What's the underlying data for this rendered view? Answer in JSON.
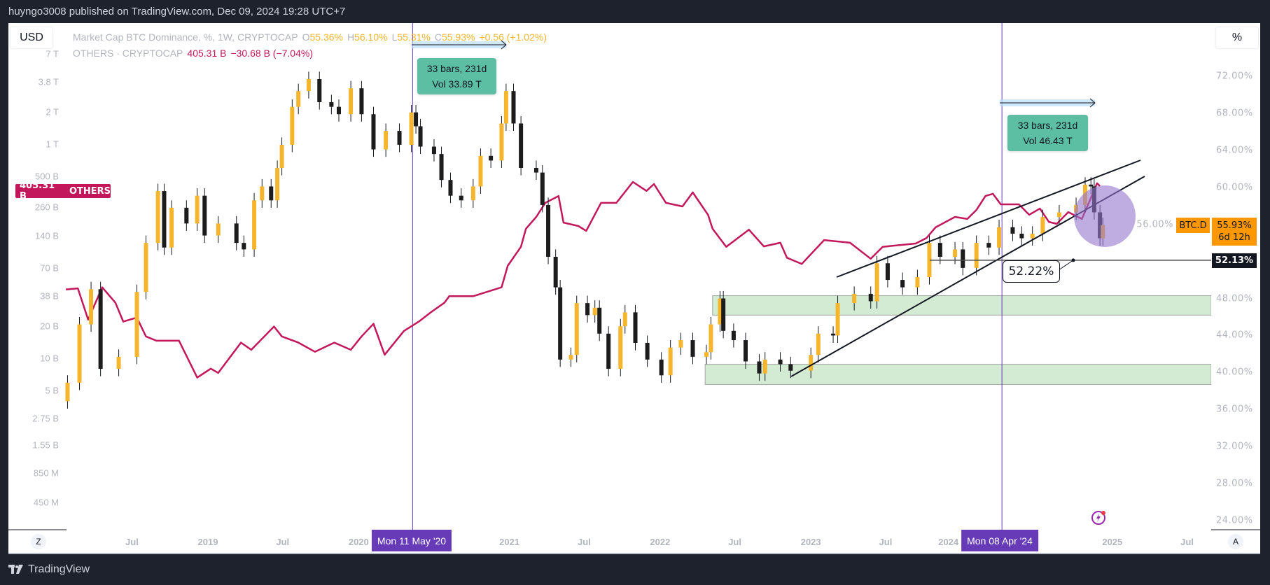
{
  "header": {
    "published": "huyngo3008 published on TradingView.com, Dec 09, 2024 19:28 UTC+7"
  },
  "toolbar": {
    "currency": "USD",
    "scale_mode": "%",
    "auto_button": "A",
    "zoom_button": "Z"
  },
  "legend": {
    "main": {
      "title": "Market Cap BTC Dominance, %, 1W, CRYPTOCAP",
      "o_label": "O",
      "o": "55.36%",
      "h_label": "H",
      "h": "56.10%",
      "l_label": "L",
      "l": "55.31%",
      "c_label": "C",
      "c": "55.93%",
      "change": "+0.56 (+1.02%)"
    },
    "others": {
      "title": "OTHERS · CRYPTOCAP",
      "value": "405.31 B",
      "change": "−30.68 B (−7.04%)"
    }
  },
  "colors": {
    "up_candle": "#f5b62e",
    "down_candle": "#1c1c1c",
    "others_line": "#c2185b",
    "date_marker": "#673ab7",
    "btcd_tag": "#ff9800",
    "zone": "#d4ebd3",
    "highlight_circle": "#9575cd",
    "measure_box": "#5cbfa3"
  },
  "price_labels": {
    "others_tag_value": "405.31 B",
    "others_tag_name": "OTHERS",
    "btcd_tag_name": "BTC.D",
    "btcd_value": "55.93%",
    "btcd_countdown": "6d 12h",
    "hline_value": "52.13%",
    "callout": "52.22%"
  },
  "measures": [
    {
      "bars": "33 bars, 231d",
      "vol": "Vol 33.89 T"
    },
    {
      "bars": "33 bars, 231d",
      "vol": "Vol 46.43 T"
    }
  ],
  "date_markers": [
    "Mon 11 May '20",
    "Mon 08 Apr '24"
  ],
  "footer": {
    "brand": "TradingView"
  },
  "chart_data": {
    "type": "candlestick+line",
    "left_axis": {
      "scale": "log",
      "ticks": [
        "7 T",
        "3.8 T",
        "2 T",
        "1 T",
        "500 B",
        "260 B",
        "140 B",
        "70 B",
        "38 B",
        "20 B",
        "10 B",
        "5 B",
        "2.75 B",
        "1.55 B",
        "850 M",
        "450 M"
      ]
    },
    "right_axis": {
      "scale": "linear",
      "ticks": [
        "72.00%",
        "68.00%",
        "64.00%",
        "60.00%",
        "56.00%",
        "48.00%",
        "44.00%",
        "40.00%",
        "36.00%",
        "32.00%",
        "28.00%",
        "24.00%"
      ]
    },
    "x_ticks": [
      {
        "label": "Jul",
        "date": "2018-07-01"
      },
      {
        "label": "2019",
        "date": "2019-01-01"
      },
      {
        "label": "Jul",
        "date": "2019-07-01"
      },
      {
        "label": "2020",
        "date": "2020-01-01"
      },
      {
        "label": "2021",
        "date": "2021-01-01"
      },
      {
        "label": "Jul",
        "date": "2021-07-01"
      },
      {
        "label": "2022",
        "date": "2022-01-01"
      },
      {
        "label": "Jul",
        "date": "2022-07-01"
      },
      {
        "label": "2023",
        "date": "2023-01-01"
      },
      {
        "label": "Jul",
        "date": "2023-07-01"
      },
      {
        "label": "2024",
        "date": "2024-01-01"
      },
      {
        "label": "2025",
        "date": "2025-01-01"
      },
      {
        "label": "Jul",
        "date": "2025-07-01"
      }
    ],
    "series": [
      {
        "name": "Market Cap BTC Dominance",
        "unit": "%",
        "axis": "right",
        "style": "candles",
        "closes": [
          [
            "2018-01-26",
            38.9
          ],
          [
            "2018-02-24",
            45.2
          ],
          [
            "2018-03-24",
            49.0
          ],
          [
            "2018-04-16",
            40.4
          ],
          [
            "2018-05-30",
            41.7
          ],
          [
            "2018-07-13",
            48.7
          ],
          [
            "2018-08-04",
            54.0
          ],
          [
            "2018-09-02",
            59.6
          ],
          [
            "2018-09-17",
            53.5
          ],
          [
            "2018-10-05",
            57.8
          ],
          [
            "2018-11-10",
            56.1
          ],
          [
            "2018-12-06",
            59.1
          ],
          [
            "2018-12-24",
            54.8
          ],
          [
            "2019-01-26",
            56.1
          ],
          [
            "2019-03-11",
            54.0
          ],
          [
            "2019-03-29",
            53.3
          ],
          [
            "2019-04-23",
            58.6
          ],
          [
            "2019-05-12",
            60.1
          ],
          [
            "2019-06-03",
            58.6
          ],
          [
            "2019-06-18",
            62.1
          ],
          [
            "2019-06-29",
            64.6
          ],
          [
            "2019-07-24",
            68.7
          ],
          [
            "2019-08-08",
            70.4
          ],
          [
            "2019-09-02",
            71.7
          ],
          [
            "2019-09-28",
            69.2
          ],
          [
            "2019-10-27",
            68.7
          ],
          [
            "2019-11-14",
            67.9
          ],
          [
            "2019-12-13",
            70.7
          ],
          [
            "2020-01-08",
            67.9
          ],
          [
            "2020-02-06",
            64.1
          ],
          [
            "2020-03-07",
            66.1
          ],
          [
            "2020-04-09",
            64.6
          ],
          [
            "2020-05-08",
            68.1
          ],
          [
            "2020-05-19",
            66.6
          ],
          [
            "2020-05-30",
            64.4
          ],
          [
            "2020-07-02",
            63.6
          ],
          [
            "2020-07-20",
            60.8
          ],
          [
            "2020-08-11",
            59.1
          ],
          [
            "2020-09-06",
            58.6
          ],
          [
            "2020-10-05",
            60.1
          ],
          [
            "2020-10-23",
            63.4
          ],
          [
            "2020-11-17",
            62.9
          ],
          [
            "2020-12-13",
            66.9
          ],
          [
            "2020-12-24",
            70.4
          ],
          [
            "2021-01-11",
            66.9
          ],
          [
            "2021-01-29",
            62.1
          ],
          [
            "2021-03-07",
            61.6
          ],
          [
            "2021-03-22",
            58.1
          ],
          [
            "2021-04-05",
            52.5
          ],
          [
            "2021-04-23",
            49.2
          ],
          [
            "2021-05-04",
            41.4
          ],
          [
            "2021-05-30",
            41.9
          ],
          [
            "2021-06-13",
            47.5
          ],
          [
            "2021-07-09",
            46.2
          ],
          [
            "2021-07-27",
            47.0
          ],
          [
            "2021-08-07",
            44.2
          ],
          [
            "2021-08-29",
            40.4
          ],
          [
            "2021-09-27",
            45.0
          ],
          [
            "2021-10-08",
            46.5
          ],
          [
            "2021-11-02",
            43.2
          ],
          [
            "2021-12-01",
            41.4
          ],
          [
            "2022-01-04",
            39.7
          ],
          [
            "2022-01-26",
            42.7
          ],
          [
            "2022-02-20",
            43.5
          ],
          [
            "2022-03-21",
            41.7
          ],
          [
            "2022-04-23",
            42.2
          ],
          [
            "2022-05-04",
            45.2
          ],
          [
            "2022-05-26",
            48.0
          ],
          [
            "2022-06-03",
            44.5
          ],
          [
            "2022-06-28",
            43.5
          ],
          [
            "2022-07-27",
            41.2
          ],
          [
            "2022-08-29",
            39.9
          ],
          [
            "2022-09-12",
            41.4
          ],
          [
            "2022-10-19",
            40.9
          ],
          [
            "2022-11-13",
            40.2
          ],
          [
            "2023-01-01",
            41.9
          ],
          [
            "2023-01-19",
            44.2
          ],
          [
            "2023-02-24",
            44.0
          ],
          [
            "2023-03-07",
            47.5
          ],
          [
            "2023-04-16",
            48.5
          ],
          [
            "2023-05-26",
            47.7
          ],
          [
            "2023-06-10",
            51.8
          ],
          [
            "2023-07-06",
            50.0
          ],
          [
            "2023-08-11",
            49.2
          ],
          [
            "2023-09-16",
            50.3
          ],
          [
            "2023-10-15",
            54.0
          ],
          [
            "2023-11-10",
            52.5
          ],
          [
            "2023-12-16",
            53.3
          ],
          [
            "2024-01-04",
            51.3
          ],
          [
            "2024-02-06",
            54.0
          ],
          [
            "2024-03-07",
            53.5
          ],
          [
            "2024-04-01",
            55.7
          ],
          [
            "2024-05-04",
            55.0
          ],
          [
            "2024-05-26",
            54.5
          ],
          [
            "2024-06-21",
            55.0
          ],
          [
            "2024-07-16",
            56.8
          ],
          [
            "2024-08-25",
            57.3
          ],
          [
            "2024-10-05",
            58.1
          ],
          [
            "2024-10-27",
            60.3
          ],
          [
            "2024-11-10",
            60.1
          ],
          [
            "2024-11-18",
            57.3
          ],
          [
            "2024-12-02",
            54.5
          ],
          [
            "2024-12-09",
            55.93
          ]
        ]
      },
      {
        "name": "OTHERS",
        "unit": "B USD",
        "axis": "left",
        "style": "line",
        "points": [
          [
            "2018-01-22",
            44
          ],
          [
            "2018-02-20",
            45
          ],
          [
            "2018-03-17",
            23
          ],
          [
            "2018-04-20",
            46
          ],
          [
            "2018-05-22",
            33
          ],
          [
            "2018-06-10",
            22
          ],
          [
            "2018-07-13",
            24
          ],
          [
            "2018-08-04",
            16
          ],
          [
            "2018-08-29",
            14.6
          ],
          [
            "2018-10-23",
            14.6
          ],
          [
            "2018-12-06",
            6.6
          ],
          [
            "2019-01-08",
            8
          ],
          [
            "2019-01-26",
            7.3
          ],
          [
            "2019-03-22",
            14
          ],
          [
            "2019-04-16",
            12
          ],
          [
            "2019-06-10",
            19.8
          ],
          [
            "2019-06-29",
            16
          ],
          [
            "2019-08-08",
            14
          ],
          [
            "2019-09-17",
            11.5
          ],
          [
            "2019-11-03",
            14
          ],
          [
            "2019-12-13",
            12
          ],
          [
            "2020-01-08",
            16
          ],
          [
            "2020-02-06",
            21
          ],
          [
            "2020-03-04",
            10.8
          ],
          [
            "2020-04-20",
            18
          ],
          [
            "2020-05-26",
            22
          ],
          [
            "2020-06-25",
            27
          ],
          [
            "2020-07-27",
            33
          ],
          [
            "2020-08-08",
            38
          ],
          [
            "2020-10-05",
            38
          ],
          [
            "2020-12-13",
            46
          ],
          [
            "2020-12-28",
            73
          ],
          [
            "2021-01-29",
            110
          ],
          [
            "2021-02-10",
            162
          ],
          [
            "2021-03-07",
            209
          ],
          [
            "2021-03-29",
            283
          ],
          [
            "2021-04-30",
            328
          ],
          [
            "2021-05-12",
            185
          ],
          [
            "2021-06-17",
            172
          ],
          [
            "2021-07-06",
            155
          ],
          [
            "2021-08-11",
            283
          ],
          [
            "2021-09-17",
            283
          ],
          [
            "2021-10-27",
            444
          ],
          [
            "2021-11-29",
            366
          ],
          [
            "2021-12-17",
            424
          ],
          [
            "2022-01-15",
            283
          ],
          [
            "2022-02-24",
            262
          ],
          [
            "2022-03-21",
            354
          ],
          [
            "2022-04-27",
            219
          ],
          [
            "2022-05-08",
            162
          ],
          [
            "2022-06-10",
            110
          ],
          [
            "2022-08-04",
            159
          ],
          [
            "2022-09-09",
            111
          ],
          [
            "2022-10-19",
            120
          ],
          [
            "2022-11-04",
            87
          ],
          [
            "2022-12-10",
            76
          ],
          [
            "2023-02-02",
            127
          ],
          [
            "2023-04-06",
            120
          ],
          [
            "2023-05-26",
            85
          ],
          [
            "2023-06-24",
            110
          ],
          [
            "2023-09-12",
            118
          ],
          [
            "2023-10-08",
            133
          ],
          [
            "2023-10-30",
            167
          ],
          [
            "2023-12-16",
            209
          ],
          [
            "2024-01-15",
            200
          ],
          [
            "2024-02-06",
            243
          ],
          [
            "2024-02-28",
            328
          ],
          [
            "2024-03-17",
            344
          ],
          [
            "2024-04-05",
            274
          ],
          [
            "2024-05-19",
            274
          ],
          [
            "2024-06-13",
            219
          ],
          [
            "2024-07-09",
            250
          ],
          [
            "2024-07-31",
            188
          ],
          [
            "2024-08-19",
            180
          ],
          [
            "2024-09-16",
            232
          ],
          [
            "2024-10-19",
            200
          ],
          [
            "2024-11-10",
            314
          ],
          [
            "2024-11-25",
            431
          ],
          [
            "2024-12-02",
            405.31
          ]
        ]
      }
    ],
    "annotations": {
      "horizontal_line": 52.13,
      "callout": 52.22,
      "vertical_markers": [
        "2020-05-11",
        "2024-04-08"
      ]
    }
  }
}
